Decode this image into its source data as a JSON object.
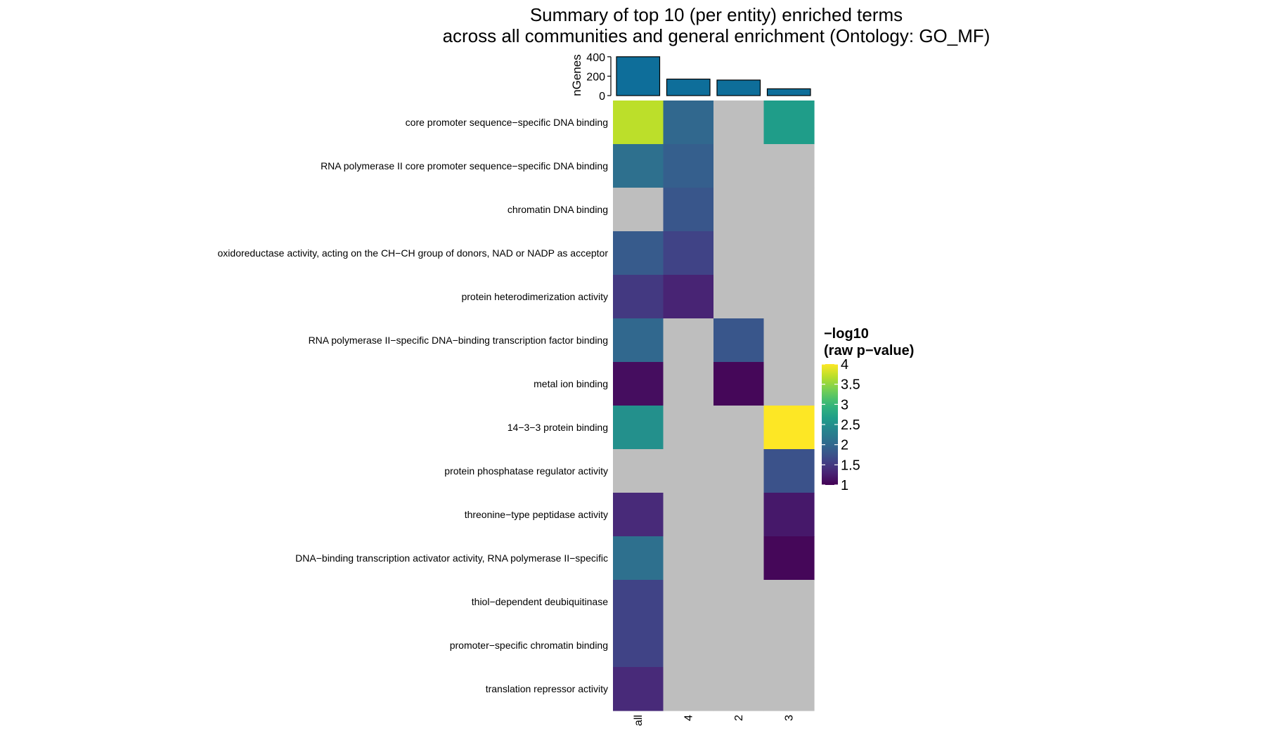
{
  "chart_data": {
    "type": "heatmap",
    "title": "Summary of top 10 (per entity) enriched terms",
    "subtitle": "across all communities and general enrichment (Ontology: GO_MF)",
    "columns": [
      "all",
      "4",
      "2",
      "3"
    ],
    "rows": [
      "core promoter sequence−specific DNA binding",
      "RNA polymerase II core promoter sequence−specific DNA binding",
      "chromatin DNA binding",
      "oxidoreductase activity, acting on the CH−CH group of donors, NAD or NADP as acceptor",
      "protein heterodimerization activity",
      "RNA polymerase II−specific DNA−binding transcription factor binding",
      "metal ion binding",
      "14−3−3 protein binding",
      "protein phosphatase regulator activity",
      "threonine−type peptidase activity",
      "DNA−binding transcription activator activity, RNA polymerase II−specific",
      "thiol−dependent deubiquitinase",
      "promoter−specific chromatin binding",
      "translation repressor activity"
    ],
    "values": [
      [
        3.7,
        2.0,
        null,
        2.65
      ],
      [
        2.1,
        1.9,
        null,
        null
      ],
      [
        null,
        1.8,
        null,
        null
      ],
      [
        1.85,
        1.6,
        null,
        null
      ],
      [
        1.5,
        1.3,
        null,
        null
      ],
      [
        2.0,
        null,
        1.8,
        null
      ],
      [
        1.1,
        null,
        1.05,
        null
      ],
      [
        2.5,
        null,
        null,
        4.0
      ],
      [
        null,
        null,
        null,
        1.75
      ],
      [
        1.35,
        null,
        null,
        1.2
      ],
      [
        2.1,
        null,
        null,
        1.05
      ],
      [
        1.6,
        null,
        null,
        null
      ],
      [
        1.6,
        null,
        null,
        null
      ],
      [
        1.35,
        null,
        null,
        null
      ]
    ],
    "missing_color": "#bebebe",
    "top_bar": {
      "ylabel": "nGenes",
      "ylim": [
        0,
        420
      ],
      "ticks": [
        0,
        200,
        400
      ],
      "values": [
        400,
        170,
        160,
        70
      ],
      "bar_color": "#0e6e9a",
      "bar_edge_color": "#000000"
    },
    "legend": {
      "title_line1": "−log10",
      "title_line2": "(raw p−value)",
      "range": [
        1,
        4
      ],
      "ticks": [
        "1",
        "1.5",
        "2",
        "2.5",
        "3",
        "3.5",
        "4"
      ],
      "tick_values": [
        1,
        1.5,
        2,
        2.5,
        3,
        3.5,
        4
      ],
      "colormap": "viridis",
      "placement": "right"
    }
  }
}
